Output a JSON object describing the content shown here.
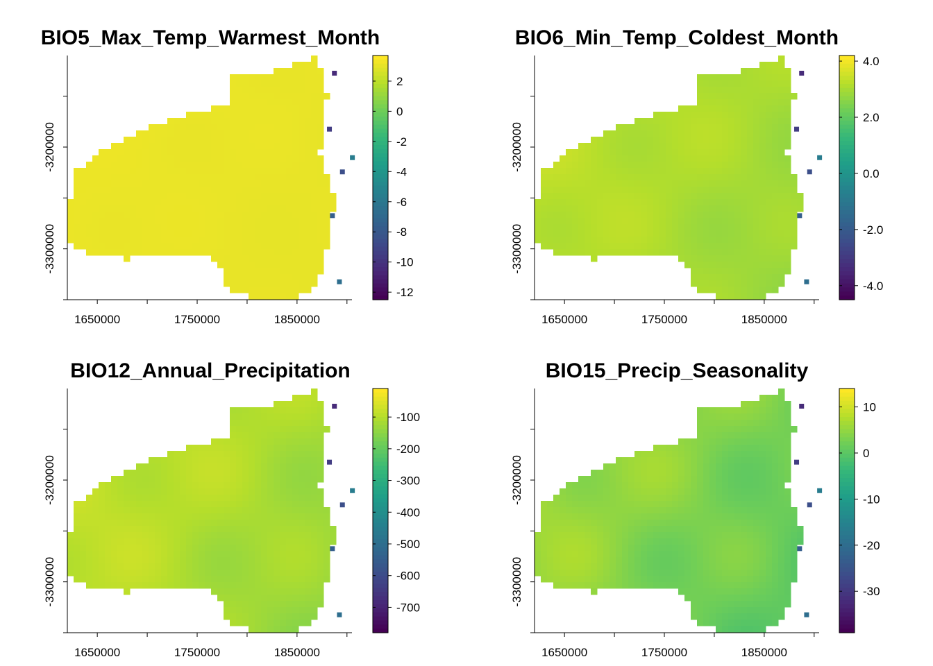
{
  "chart_data": [
    {
      "type": "heatmap",
      "title": "BIO5_Max_Temp_Warmest_Month",
      "x_ticks": [
        1650000,
        1750000,
        1850000
      ],
      "y_ticks": [
        -3200000,
        -3300000
      ],
      "x_tick_labels": [
        "1650000",
        "1750000",
        "1850000"
      ],
      "y_tick_labels": [
        "-3200000",
        "-3300000"
      ],
      "xlim": [
        1620000,
        1905000
      ],
      "ylim": [
        -3350000,
        -3110000
      ],
      "legend": {
        "min": -12.5,
        "max": 3.7,
        "ticks": [
          2,
          0,
          -2,
          -4,
          -6,
          -8,
          -10,
          -12
        ],
        "tick_labels": [
          "2",
          "0",
          "-2",
          "-4",
          "-6",
          "-8",
          "-10",
          "-12"
        ]
      },
      "field": {
        "base": 3.3,
        "min_value": 2.8,
        "range": 0.2
      }
    },
    {
      "type": "heatmap",
      "title": "BIO6_Min_Temp_Coldest_Month",
      "x_ticks": [
        1650000,
        1750000,
        1850000
      ],
      "y_ticks": [
        -3200000,
        -3300000
      ],
      "x_tick_labels": [
        "1650000",
        "1750000",
        "1850000"
      ],
      "y_tick_labels": [
        "-3200000",
        "-3300000"
      ],
      "xlim": [
        1620000,
        1905000
      ],
      "ylim": [
        -3350000,
        -3110000
      ],
      "legend": {
        "min": -4.5,
        "max": 4.2,
        "ticks": [
          4.0,
          2.0,
          0.0,
          -2.0,
          -4.0
        ],
        "tick_labels": [
          "4.0",
          "2.0",
          "0.0",
          "-2.0",
          "-4.0"
        ]
      },
      "field": {
        "base": 3.5,
        "min_value": 2.0,
        "range": 0.8
      }
    },
    {
      "type": "heatmap",
      "title": "BIO12_Annual_Precipitation",
      "x_ticks": [
        1650000,
        1750000,
        1850000
      ],
      "y_ticks": [
        -3200000,
        -3300000
      ],
      "x_tick_labels": [
        "1650000",
        "1750000",
        "1850000"
      ],
      "y_tick_labels": [
        "-3200000",
        "-3300000"
      ],
      "xlim": [
        1620000,
        1905000
      ],
      "ylim": [
        -3350000,
        -3110000
      ],
      "legend": {
        "min": -780,
        "max": -10,
        "ticks": [
          -100,
          -200,
          -300,
          -400,
          -500,
          -600,
          -700
        ],
        "tick_labels": [
          "-100",
          "-200",
          "-300",
          "-400",
          "-500",
          "-600",
          "-700"
        ]
      },
      "field": {
        "base": -60,
        "min_value": -300,
        "range": 90
      }
    },
    {
      "type": "heatmap",
      "title": "BIO15_Precip_Seasonality",
      "x_ticks": [
        1650000,
        1750000,
        1850000
      ],
      "y_ticks": [
        -3200000,
        -3300000
      ],
      "x_tick_labels": [
        "1650000",
        "1750000",
        "1850000"
      ],
      "y_tick_labels": [
        "-3200000",
        "-3300000"
      ],
      "xlim": [
        1620000,
        1905000
      ],
      "ylim": [
        -3350000,
        -3110000
      ],
      "legend": {
        "min": -39,
        "max": 14,
        "ticks": [
          10,
          0,
          -10,
          -20,
          -30
        ],
        "tick_labels": [
          "10",
          "0",
          "-10",
          "-20",
          "-30"
        ]
      },
      "field": {
        "base": 8,
        "min_value": -4,
        "range": 9
      }
    }
  ],
  "colors": {
    "palette": [
      "#440154",
      "#482878",
      "#3e4a89",
      "#31688e",
      "#26828e",
      "#1f9e89",
      "#35b779",
      "#6ece58",
      "#b5de2b",
      "#fde725"
    ]
  }
}
